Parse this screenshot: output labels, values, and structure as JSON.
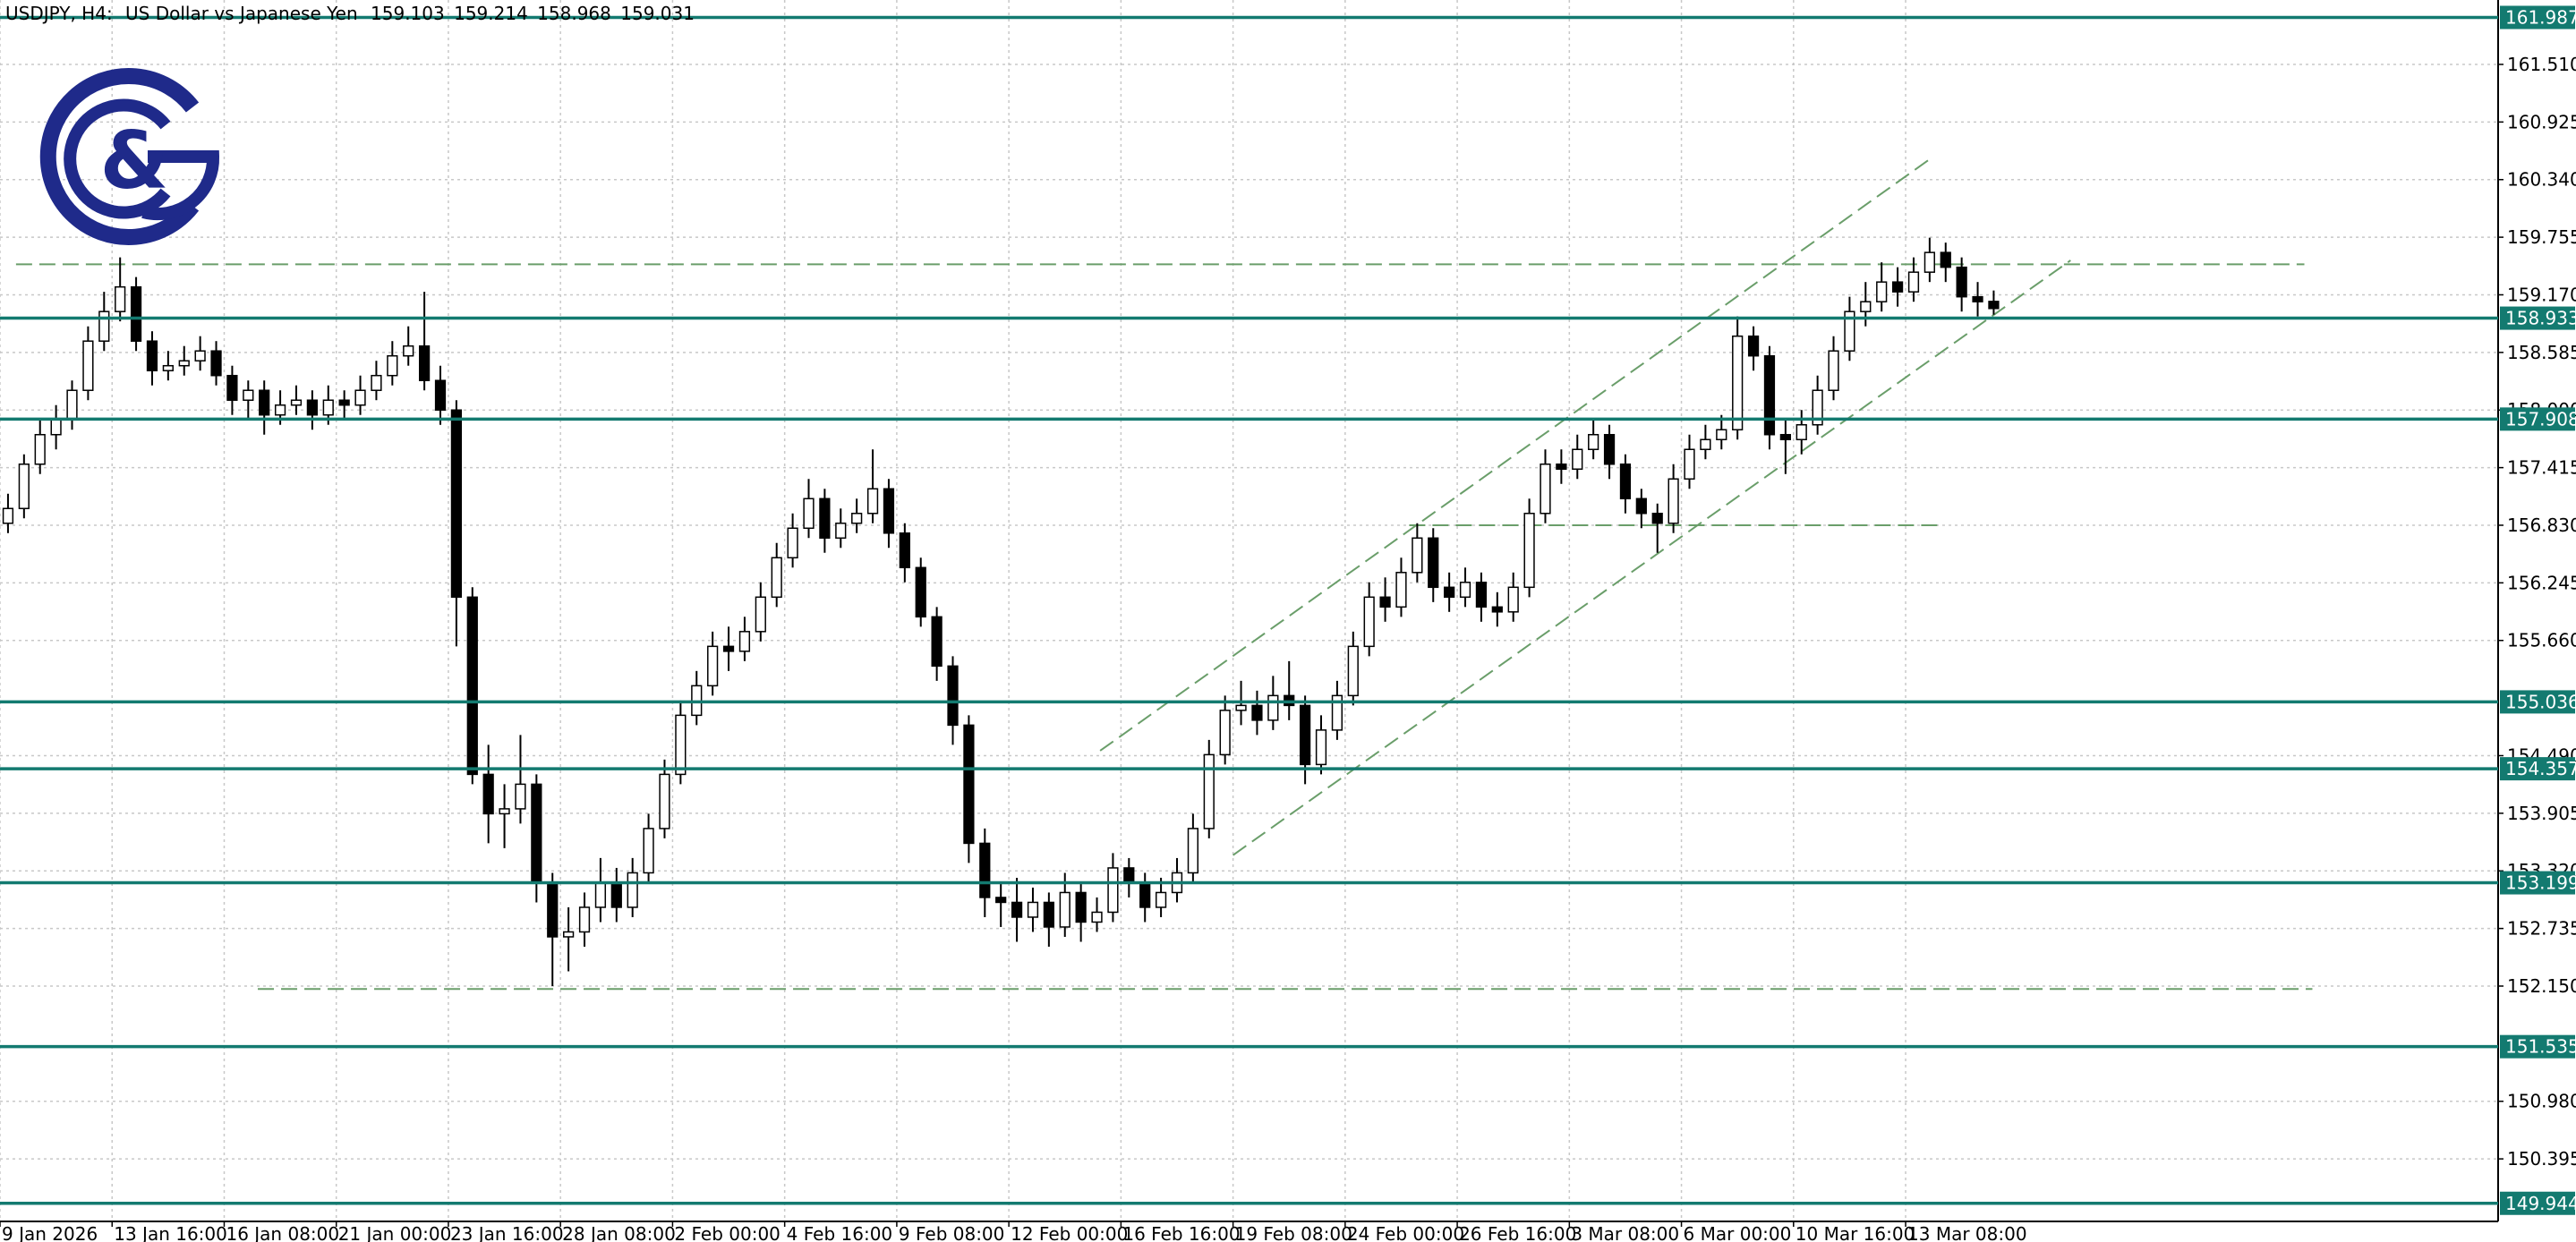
{
  "chart_data": {
    "type": "candlestick",
    "header": {
      "symbol": "USDJPY, H4:",
      "description": "US Dollar vs Japanese Yen"
    },
    "logo": "&",
    "ylim": [
      149.76,
      162.164
    ],
    "yticks": [
      {
        "value": 161.51,
        "label": "161.510"
      },
      160.925,
      {
        "value": 160.34,
        "label": "160.340"
      },
      159.755,
      {
        "value": 159.17,
        "label": "159.170"
      },
      158.585,
      {
        "value": 158,
        "label": "158.000"
      },
      157.415,
      {
        "value": 156.83,
        "label": "156.830"
      },
      156.245,
      {
        "value": 155.66,
        "label": "155.660"
      },
      {
        "value": 154.49,
        "label": "154.490"
      },
      153.905,
      {
        "value": 153.32,
        "label": "153.320"
      },
      152.735,
      {
        "value": 152.15,
        "label": "152.150"
      },
      {
        "value": 150.98,
        "label": "150.980"
      },
      150.395
    ],
    "grid": true,
    "categories": [
      "9 Jan 2026",
      null,
      null,
      null,
      null,
      null,
      null,
      "13 Jan 16:00",
      null,
      null,
      null,
      null,
      null,
      null,
      "16 Jan 08:00",
      null,
      null,
      null,
      null,
      null,
      null,
      "21 Jan 00:00",
      null,
      null,
      null,
      null,
      null,
      null,
      "23 Jan 16:00",
      null,
      null,
      null,
      null,
      null,
      null,
      "28 Jan 08:00",
      null,
      null,
      null,
      null,
      null,
      null,
      "2 Feb 00:00",
      null,
      null,
      null,
      null,
      null,
      null,
      "4 Feb 16:00",
      null,
      null,
      null,
      null,
      null,
      null,
      "9 Feb 08:00",
      null,
      null,
      null,
      null,
      null,
      null,
      "12 Feb 00:00",
      null,
      null,
      null,
      null,
      null,
      null,
      "16 Feb 16:00",
      null,
      null,
      null,
      null,
      null,
      null,
      "19 Feb 08:00",
      null,
      null,
      null,
      null,
      null,
      null,
      "24 Feb 00:00",
      null,
      null,
      null,
      null,
      null,
      null,
      "26 Feb 16:00",
      null,
      null,
      null,
      null,
      null,
      null,
      "3 Mar 08:00",
      null,
      null,
      null,
      null,
      null,
      null,
      "6 Mar 00:00",
      null,
      null,
      null,
      null,
      null,
      null,
      "10 Mar 16:00",
      null,
      null,
      null,
      null,
      null,
      null,
      "13 Mar 08:00",
      null,
      null,
      null,
      null,
      null,
      null,
      null,
      null,
      null,
      null,
      null,
      null,
      null,
      null,
      null,
      null,
      null,
      null,
      null,
      null,
      null,
      null,
      null,
      null,
      null,
      null,
      null,
      null,
      null,
      null,
      null,
      null,
      null,
      null,
      null,
      null
    ],
    "series": [
      {
        "name": "USDJPY",
        "up_color": "#ffffff",
        "down_color": "#000000",
        "values": [
          [
            156.85,
            157.15,
            156.75,
            157.0
          ],
          [
            157.0,
            157.55,
            156.9,
            157.45
          ],
          [
            157.45,
            157.9,
            157.35,
            157.75
          ],
          [
            157.75,
            158.05,
            157.6,
            157.9
          ],
          [
            157.9,
            158.3,
            157.8,
            158.2
          ],
          [
            158.2,
            158.85,
            158.1,
            158.7
          ],
          [
            158.7,
            159.2,
            158.6,
            159.0
          ],
          [
            159.0,
            159.55,
            158.9,
            159.25
          ],
          [
            159.25,
            159.35,
            158.6,
            158.7
          ],
          [
            158.7,
            158.8,
            158.25,
            158.4
          ],
          [
            158.4,
            158.6,
            158.3,
            158.45
          ],
          [
            158.45,
            158.65,
            158.35,
            158.5
          ],
          [
            158.5,
            158.75,
            158.4,
            158.6
          ],
          [
            158.6,
            158.7,
            158.25,
            158.35
          ],
          [
            158.35,
            158.45,
            157.95,
            158.1
          ],
          [
            158.1,
            158.3,
            157.9,
            158.2
          ],
          [
            158.2,
            158.3,
            157.75,
            157.95
          ],
          [
            157.95,
            158.2,
            157.85,
            158.05
          ],
          [
            158.05,
            158.25,
            157.95,
            158.1
          ],
          [
            158.1,
            158.2,
            157.8,
            157.95
          ],
          [
            157.95,
            158.25,
            157.85,
            158.1
          ],
          [
            158.1,
            158.2,
            157.9,
            158.05
          ],
          [
            158.05,
            158.35,
            157.95,
            158.2
          ],
          [
            158.2,
            158.5,
            158.1,
            158.35
          ],
          [
            158.35,
            158.7,
            158.25,
            158.55
          ],
          [
            158.55,
            158.85,
            158.45,
            158.65
          ],
          [
            158.65,
            159.2,
            158.2,
            158.3
          ],
          [
            158.3,
            158.45,
            157.85,
            158.0
          ],
          [
            158.0,
            158.1,
            155.6,
            156.1
          ],
          [
            156.1,
            156.2,
            154.2,
            154.3
          ],
          [
            154.3,
            154.6,
            153.6,
            153.9
          ],
          [
            153.9,
            154.2,
            153.55,
            153.95
          ],
          [
            153.95,
            154.7,
            153.8,
            154.2
          ],
          [
            154.2,
            154.3,
            153.0,
            153.2
          ],
          [
            153.2,
            153.3,
            152.15,
            152.65
          ],
          [
            152.65,
            152.95,
            152.3,
            152.7
          ],
          [
            152.7,
            153.1,
            152.55,
            152.95
          ],
          [
            152.95,
            153.45,
            152.8,
            153.2
          ],
          [
            153.2,
            153.35,
            152.8,
            152.95
          ],
          [
            152.95,
            153.45,
            152.85,
            153.3
          ],
          [
            153.3,
            153.9,
            153.2,
            153.75
          ],
          [
            153.75,
            154.45,
            153.65,
            154.3
          ],
          [
            154.3,
            155.05,
            154.2,
            154.9
          ],
          [
            154.9,
            155.35,
            154.8,
            155.2
          ],
          [
            155.2,
            155.75,
            155.1,
            155.6
          ],
          [
            155.6,
            155.8,
            155.35,
            155.55
          ],
          [
            155.55,
            155.9,
            155.45,
            155.75
          ],
          [
            155.75,
            156.25,
            155.65,
            156.1
          ],
          [
            156.1,
            156.65,
            156.0,
            156.5
          ],
          [
            156.5,
            156.95,
            156.4,
            156.8
          ],
          [
            156.8,
            157.3,
            156.7,
            157.1
          ],
          [
            157.1,
            157.2,
            156.55,
            156.7
          ],
          [
            156.7,
            157.0,
            156.6,
            156.85
          ],
          [
            156.85,
            157.1,
            156.75,
            156.95
          ],
          [
            156.95,
            157.6,
            156.85,
            157.2
          ],
          [
            157.2,
            157.3,
            156.6,
            156.75
          ],
          [
            156.75,
            156.85,
            156.25,
            156.4
          ],
          [
            156.4,
            156.5,
            155.8,
            155.9
          ],
          [
            155.9,
            156.0,
            155.25,
            155.4
          ],
          [
            155.4,
            155.5,
            154.6,
            154.8
          ],
          [
            154.8,
            154.9,
            153.4,
            153.6
          ],
          [
            153.6,
            153.75,
            152.85,
            153.05
          ],
          [
            153.05,
            153.2,
            152.75,
            153.0
          ],
          [
            153.0,
            153.25,
            152.6,
            152.85
          ],
          [
            152.85,
            153.15,
            152.7,
            153.0
          ],
          [
            153.0,
            153.1,
            152.55,
            152.75
          ],
          [
            152.75,
            153.3,
            152.65,
            153.1
          ],
          [
            153.1,
            153.2,
            152.6,
            152.8
          ],
          [
            152.8,
            153.05,
            152.7,
            152.9
          ],
          [
            152.9,
            153.5,
            152.8,
            153.35
          ],
          [
            153.35,
            153.45,
            153.05,
            153.2
          ],
          [
            153.2,
            153.3,
            152.8,
            152.95
          ],
          [
            152.95,
            153.25,
            152.85,
            153.1
          ],
          [
            153.1,
            153.45,
            153.0,
            153.3
          ],
          [
            153.3,
            153.9,
            153.2,
            153.75
          ],
          [
            153.75,
            154.65,
            153.65,
            154.5
          ],
          [
            154.5,
            155.1,
            154.4,
            154.95
          ],
          [
            154.95,
            155.25,
            154.8,
            155.0
          ],
          [
            155.0,
            155.15,
            154.7,
            154.85
          ],
          [
            154.85,
            155.3,
            154.75,
            155.1
          ],
          [
            155.1,
            155.45,
            154.85,
            155.0
          ],
          [
            155.0,
            155.1,
            154.2,
            154.4
          ],
          [
            154.4,
            154.9,
            154.3,
            154.75
          ],
          [
            154.75,
            155.25,
            154.65,
            155.1
          ],
          [
            155.1,
            155.75,
            155.0,
            155.6
          ],
          [
            155.6,
            156.25,
            155.5,
            156.1
          ],
          [
            156.1,
            156.3,
            155.85,
            156.0
          ],
          [
            156.0,
            156.5,
            155.9,
            156.35
          ],
          [
            156.35,
            156.85,
            156.25,
            156.7
          ],
          [
            156.7,
            156.8,
            156.05,
            156.2
          ],
          [
            156.2,
            156.35,
            155.95,
            156.1
          ],
          [
            156.1,
            156.4,
            156.0,
            156.25
          ],
          [
            156.25,
            156.35,
            155.85,
            156.0
          ],
          [
            156.0,
            156.15,
            155.8,
            155.95
          ],
          [
            155.95,
            156.35,
            155.85,
            156.2
          ],
          [
            156.2,
            157.1,
            156.1,
            156.95
          ],
          [
            156.95,
            157.6,
            156.85,
            157.45
          ],
          [
            157.45,
            157.6,
            157.25,
            157.4
          ],
          [
            157.4,
            157.75,
            157.3,
            157.6
          ],
          [
            157.6,
            157.9,
            157.5,
            157.75
          ],
          [
            157.75,
            157.85,
            157.3,
            157.45
          ],
          [
            157.45,
            157.55,
            156.95,
            157.1
          ],
          [
            157.1,
            157.2,
            156.8,
            156.95
          ],
          [
            156.95,
            157.05,
            156.55,
            156.85
          ],
          [
            156.85,
            157.45,
            156.75,
            157.3
          ],
          [
            157.3,
            157.75,
            157.2,
            157.6
          ],
          [
            157.6,
            157.85,
            157.5,
            157.7
          ],
          [
            157.7,
            157.95,
            157.6,
            157.8
          ],
          [
            157.8,
            158.95,
            157.7,
            158.75
          ],
          [
            158.75,
            158.85,
            158.4,
            158.55
          ],
          [
            158.55,
            158.65,
            157.6,
            157.75
          ],
          [
            157.75,
            157.9,
            157.35,
            157.7
          ],
          [
            157.7,
            158.0,
            157.55,
            157.85
          ],
          [
            157.85,
            158.35,
            157.75,
            158.2
          ],
          [
            158.2,
            158.75,
            158.1,
            158.6
          ],
          [
            158.6,
            159.15,
            158.5,
            159.0
          ],
          [
            159.0,
            159.3,
            158.85,
            159.1
          ],
          [
            159.1,
            159.5,
            159.0,
            159.3
          ],
          [
            159.3,
            159.45,
            159.05,
            159.2
          ],
          [
            159.2,
            159.55,
            159.1,
            159.4
          ],
          [
            159.4,
            159.75,
            159.3,
            159.6
          ],
          [
            159.6,
            159.7,
            159.3,
            159.45
          ],
          [
            159.45,
            159.55,
            159.0,
            159.15
          ],
          [
            159.15,
            159.3,
            158.95,
            159.1
          ],
          [
            159.103,
            159.214,
            158.968,
            159.031
          ]
        ]
      }
    ],
    "levels": [
      161.987,
      158.933,
      157.908,
      155.036,
      154.357,
      153.199,
      151.535,
      149.944
    ],
    "level_color": "#137a70",
    "trendline_color": "#6a9e6a",
    "trendlines": [
      {
        "x": [
          68.2,
          120.2
        ],
        "y": [
          154.54,
          160.57
        ]
      },
      {
        "x": [
          76.5,
          128.8
        ],
        "y": [
          153.48,
          159.52
        ]
      },
      {
        "x": [
          0.5,
          143.4
        ],
        "y": [
          159.48,
          159.48
        ]
      },
      {
        "x": [
          15.6,
          143.9
        ],
        "y": [
          152.12,
          152.12
        ]
      },
      {
        "x": [
          87.5,
          120.8
        ],
        "y": [
          156.83,
          156.83
        ]
      }
    ]
  }
}
